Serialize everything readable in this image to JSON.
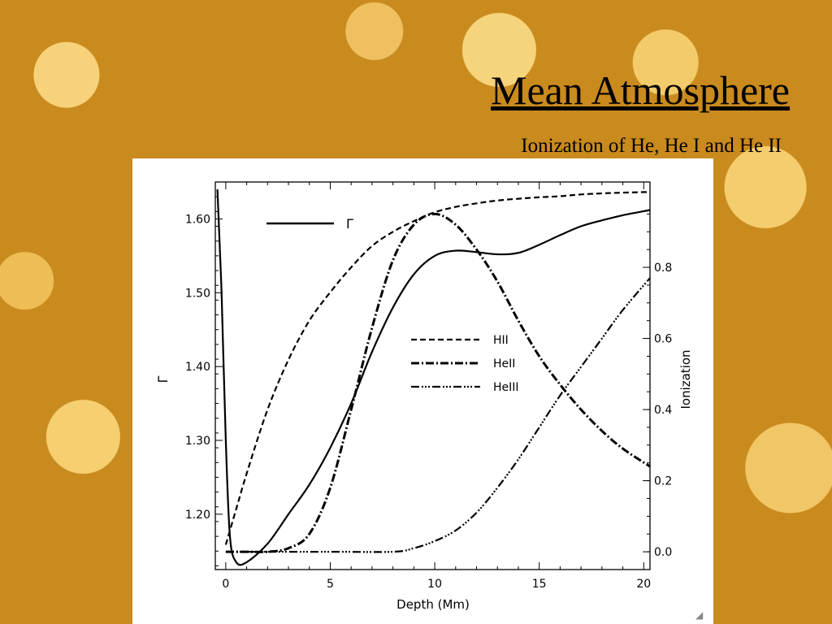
{
  "slide": {
    "title": "Mean Atmosphere",
    "subtitle": "Ionization of He, He I and He II"
  },
  "chart_data": {
    "type": "line",
    "xlabel": "Depth (Mm)",
    "ylabel_left": "Γ",
    "ylabel_right": "Ionization",
    "xlim": [
      -0.5,
      20.3
    ],
    "ylim_left": [
      1.125,
      1.65
    ],
    "ylim_right": [
      -0.05,
      1.04
    ],
    "x_ticks": [
      "0",
      "5",
      "10",
      "15",
      "20"
    ],
    "y_left_ticks": [
      "1.20",
      "1.30",
      "1.40",
      "1.50",
      "1.60"
    ],
    "y_right_ticks": [
      "0.0",
      "0.2",
      "0.4",
      "0.6",
      "0.8"
    ],
    "legend_gamma": "Γ",
    "series": [
      {
        "name": "Γ",
        "axis": "left",
        "style": "solid",
        "points": [
          [
            -0.4,
            1.64
          ],
          [
            -0.2,
            1.5
          ],
          [
            0,
            1.3
          ],
          [
            0.2,
            1.17
          ],
          [
            0.5,
            1.135
          ],
          [
            1,
            1.135
          ],
          [
            2,
            1.16
          ],
          [
            3,
            1.2
          ],
          [
            4,
            1.24
          ],
          [
            5,
            1.29
          ],
          [
            6,
            1.35
          ],
          [
            7,
            1.42
          ],
          [
            8,
            1.48
          ],
          [
            9,
            1.525
          ],
          [
            10,
            1.55
          ],
          [
            11,
            1.557
          ],
          [
            12,
            1.555
          ],
          [
            13,
            1.552
          ],
          [
            14,
            1.554
          ],
          [
            15,
            1.565
          ],
          [
            16,
            1.578
          ],
          [
            17,
            1.59
          ],
          [
            18,
            1.598
          ],
          [
            19,
            1.605
          ],
          [
            20.3,
            1.612
          ]
        ]
      },
      {
        "name": "HII",
        "axis": "right",
        "style": "dashed",
        "points": [
          [
            0,
            0.02
          ],
          [
            0.5,
            0.12
          ],
          [
            1,
            0.22
          ],
          [
            2,
            0.4
          ],
          [
            3,
            0.54
          ],
          [
            4,
            0.65
          ],
          [
            5,
            0.73
          ],
          [
            6,
            0.8
          ],
          [
            7,
            0.86
          ],
          [
            8,
            0.9
          ],
          [
            9,
            0.93
          ],
          [
            10,
            0.955
          ],
          [
            11,
            0.97
          ],
          [
            12,
            0.98
          ],
          [
            13,
            0.988
          ],
          [
            14,
            0.993
          ],
          [
            15,
            0.997
          ],
          [
            16,
            1.0
          ],
          [
            17,
            1.005
          ],
          [
            18,
            1.008
          ],
          [
            19,
            1.01
          ],
          [
            20.3,
            1.012
          ]
        ]
      },
      {
        "name": "HeII",
        "axis": "right",
        "style": "dashdot",
        "points": [
          [
            0,
            0.0
          ],
          [
            1,
            0.0
          ],
          [
            2,
            0.0
          ],
          [
            3,
            0.01
          ],
          [
            4,
            0.05
          ],
          [
            5,
            0.18
          ],
          [
            6,
            0.4
          ],
          [
            7,
            0.63
          ],
          [
            8,
            0.82
          ],
          [
            9,
            0.92
          ],
          [
            10,
            0.95
          ],
          [
            11,
            0.92
          ],
          [
            12,
            0.85
          ],
          [
            13,
            0.76
          ],
          [
            14,
            0.65
          ],
          [
            15,
            0.55
          ],
          [
            16,
            0.47
          ],
          [
            17,
            0.4
          ],
          [
            18,
            0.34
          ],
          [
            19,
            0.29
          ],
          [
            20.3,
            0.24
          ]
        ]
      },
      {
        "name": "HeIII",
        "axis": "right",
        "style": "dashdotdotdot",
        "points": [
          [
            0,
            0.0
          ],
          [
            5,
            0.0
          ],
          [
            8,
            0.0
          ],
          [
            9,
            0.01
          ],
          [
            10,
            0.03
          ],
          [
            11,
            0.06
          ],
          [
            12,
            0.11
          ],
          [
            13,
            0.18
          ],
          [
            14,
            0.26
          ],
          [
            15,
            0.35
          ],
          [
            16,
            0.44
          ],
          [
            17,
            0.52
          ],
          [
            18,
            0.6
          ],
          [
            19,
            0.68
          ],
          [
            20.3,
            0.77
          ]
        ]
      }
    ],
    "legend": [
      "HII",
      "HeII",
      "HeIII"
    ]
  }
}
